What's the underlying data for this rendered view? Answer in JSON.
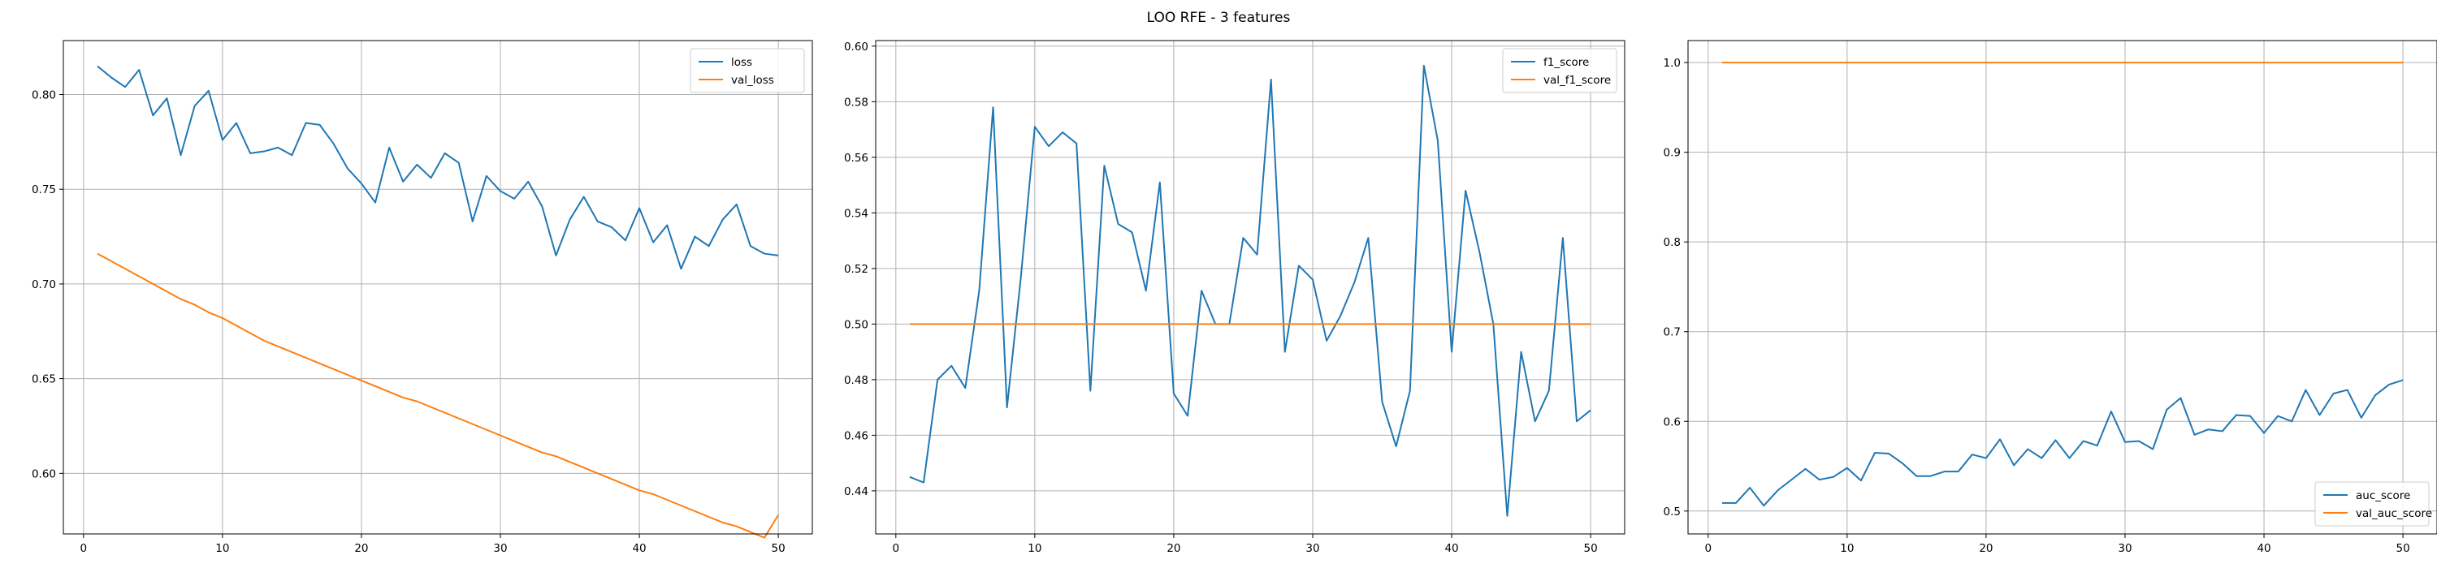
{
  "suptitle": "LOO RFE - 3 features",
  "colors": {
    "series_1": "#1f77b4",
    "series_2": "#ff7f0e",
    "grid": "#b0b0b0",
    "legend_edge": "#cccccc"
  },
  "chart_data": [
    {
      "type": "line",
      "title": "",
      "xlabel": "",
      "ylabel": "",
      "xlim": [
        -1.45,
        52.45
      ],
      "ylim": [
        0.568,
        0.8285
      ],
      "xticks": [
        0,
        10,
        20,
        30,
        40,
        50
      ],
      "yticks": [
        0.6,
        0.65,
        0.7,
        0.75,
        0.8
      ],
      "ytick_labels": [
        "0.60",
        "0.65",
        "0.70",
        "0.75",
        "0.80"
      ],
      "grid": true,
      "legend_position": "top-right",
      "x": [
        1,
        2,
        3,
        4,
        5,
        6,
        7,
        8,
        9,
        10,
        11,
        12,
        13,
        14,
        15,
        16,
        17,
        18,
        19,
        20,
        21,
        22,
        23,
        24,
        25,
        26,
        27,
        28,
        29,
        30,
        31,
        32,
        33,
        34,
        35,
        36,
        37,
        38,
        39,
        40,
        41,
        42,
        43,
        44,
        45,
        46,
        47,
        48,
        49,
        50
      ],
      "series": [
        {
          "name": "loss",
          "color": "#1f77b4",
          "values": [
            0.815,
            0.809,
            0.804,
            0.813,
            0.789,
            0.798,
            0.768,
            0.794,
            0.802,
            0.776,
            0.785,
            0.769,
            0.77,
            0.772,
            0.768,
            0.785,
            0.784,
            0.774,
            0.761,
            0.753,
            0.743,
            0.772,
            0.754,
            0.763,
            0.756,
            0.769,
            0.764,
            0.733,
            0.757,
            0.749,
            0.745,
            0.754,
            0.741,
            0.715,
            0.734,
            0.746,
            0.733,
            0.73,
            0.723,
            0.74,
            0.722,
            0.731,
            0.708,
            0.725,
            0.72,
            0.734,
            0.742,
            0.72,
            0.716,
            0.715
          ]
        },
        {
          "name": "val_loss",
          "color": "#ff7f0e",
          "values": [
            0.716,
            0.712,
            0.708,
            0.704,
            0.7,
            0.696,
            0.692,
            0.689,
            0.685,
            0.682,
            0.678,
            0.674,
            0.67,
            0.667,
            0.664,
            0.661,
            0.658,
            0.655,
            0.652,
            0.649,
            0.646,
            0.643,
            0.64,
            0.638,
            0.635,
            0.632,
            0.629,
            0.626,
            0.623,
            0.62,
            0.617,
            0.614,
            0.611,
            0.609,
            0.606,
            0.603,
            0.6,
            0.597,
            0.594,
            0.591,
            0.589,
            0.586,
            0.583,
            0.58,
            0.577,
            0.574,
            0.572,
            0.569,
            0.566,
            0.578
          ]
        }
      ]
    },
    {
      "type": "line",
      "title": "",
      "xlabel": "",
      "ylabel": "",
      "xlim": [
        -1.45,
        52.45
      ],
      "ylim": [
        0.4245,
        0.602
      ],
      "xticks": [
        0,
        10,
        20,
        30,
        40,
        50
      ],
      "yticks": [
        0.44,
        0.46,
        0.48,
        0.5,
        0.52,
        0.54,
        0.56,
        0.58,
        0.6
      ],
      "ytick_labels": [
        "0.44",
        "0.46",
        "0.48",
        "0.50",
        "0.52",
        "0.54",
        "0.56",
        "0.58",
        "0.60"
      ],
      "grid": true,
      "legend_position": "top-right",
      "x": [
        1,
        2,
        3,
        4,
        5,
        6,
        7,
        8,
        9,
        10,
        11,
        12,
        13,
        14,
        15,
        16,
        17,
        18,
        19,
        20,
        21,
        22,
        23,
        24,
        25,
        26,
        27,
        28,
        29,
        30,
        31,
        32,
        33,
        34,
        35,
        36,
        37,
        38,
        39,
        40,
        41,
        42,
        43,
        44,
        45,
        46,
        47,
        48,
        49,
        50
      ],
      "series": [
        {
          "name": "f1_score",
          "color": "#1f77b4",
          "values": [
            0.445,
            0.443,
            0.48,
            0.485,
            0.477,
            0.512,
            0.578,
            0.47,
            0.517,
            0.571,
            0.564,
            0.569,
            0.565,
            0.476,
            0.557,
            0.536,
            0.533,
            0.512,
            0.551,
            0.475,
            0.467,
            0.512,
            0.5,
            0.5,
            0.531,
            0.525,
            0.588,
            0.49,
            0.521,
            0.516,
            0.494,
            0.503,
            0.515,
            0.531,
            0.472,
            0.456,
            0.476,
            0.593,
            0.566,
            0.49,
            0.548,
            0.526,
            0.5,
            0.431,
            0.49,
            0.465,
            0.476,
            0.531,
            0.465,
            0.469
          ]
        },
        {
          "name": "val_f1_score",
          "color": "#ff7f0e",
          "values": [
            0.5,
            0.5,
            0.5,
            0.5,
            0.5,
            0.5,
            0.5,
            0.5,
            0.5,
            0.5,
            0.5,
            0.5,
            0.5,
            0.5,
            0.5,
            0.5,
            0.5,
            0.5,
            0.5,
            0.5,
            0.5,
            0.5,
            0.5,
            0.5,
            0.5,
            0.5,
            0.5,
            0.5,
            0.5,
            0.5,
            0.5,
            0.5,
            0.5,
            0.5,
            0.5,
            0.5,
            0.5,
            0.5,
            0.5,
            0.5,
            0.5,
            0.5,
            0.5,
            0.5,
            0.5,
            0.5,
            0.5,
            0.5,
            0.5,
            0.5
          ]
        }
      ]
    },
    {
      "type": "line",
      "title": "",
      "xlabel": "",
      "ylabel": "",
      "xlim": [
        -1.45,
        52.45
      ],
      "ylim": [
        0.4745,
        1.0245
      ],
      "xticks": [
        0,
        10,
        20,
        30,
        40,
        50
      ],
      "yticks": [
        0.5,
        0.6,
        0.7,
        0.8,
        0.9,
        1.0
      ],
      "ytick_labels": [
        "0.5",
        "0.6",
        "0.7",
        "0.8",
        "0.9",
        "1.0"
      ],
      "grid": true,
      "legend_position": "bottom-right",
      "x": [
        1,
        2,
        3,
        4,
        5,
        6,
        7,
        8,
        9,
        10,
        11,
        12,
        13,
        14,
        15,
        16,
        17,
        18,
        19,
        20,
        21,
        22,
        23,
        24,
        25,
        26,
        27,
        28,
        29,
        30,
        31,
        32,
        33,
        34,
        35,
        36,
        37,
        38,
        39,
        40,
        41,
        42,
        43,
        44,
        45,
        46,
        47,
        48,
        49,
        50
      ],
      "series": [
        {
          "name": "auc_score",
          "color": "#1f77b4",
          "values": [
            0.509,
            0.509,
            0.526,
            0.506,
            0.523,
            0.535,
            0.547,
            0.535,
            0.538,
            0.548,
            0.534,
            0.565,
            0.564,
            0.553,
            0.539,
            0.539,
            0.544,
            0.544,
            0.563,
            0.559,
            0.58,
            0.551,
            0.569,
            0.559,
            0.579,
            0.559,
            0.578,
            0.573,
            0.611,
            0.577,
            0.578,
            0.569,
            0.613,
            0.626,
            0.585,
            0.591,
            0.589,
            0.607,
            0.606,
            0.587,
            0.606,
            0.6,
            0.635,
            0.607,
            0.631,
            0.635,
            0.604,
            0.629,
            0.641,
            0.646
          ]
        },
        {
          "name": "val_auc_score",
          "color": "#ff7f0e",
          "values": [
            1.0,
            1.0,
            1.0,
            1.0,
            1.0,
            1.0,
            1.0,
            1.0,
            1.0,
            1.0,
            1.0,
            1.0,
            1.0,
            1.0,
            1.0,
            1.0,
            1.0,
            1.0,
            1.0,
            1.0,
            1.0,
            1.0,
            1.0,
            1.0,
            1.0,
            1.0,
            1.0,
            1.0,
            1.0,
            1.0,
            1.0,
            1.0,
            1.0,
            1.0,
            1.0,
            1.0,
            1.0,
            1.0,
            1.0,
            1.0,
            1.0,
            1.0,
            1.0,
            1.0,
            1.0,
            1.0,
            1.0,
            1.0,
            1.0,
            1.0
          ]
        }
      ]
    }
  ]
}
